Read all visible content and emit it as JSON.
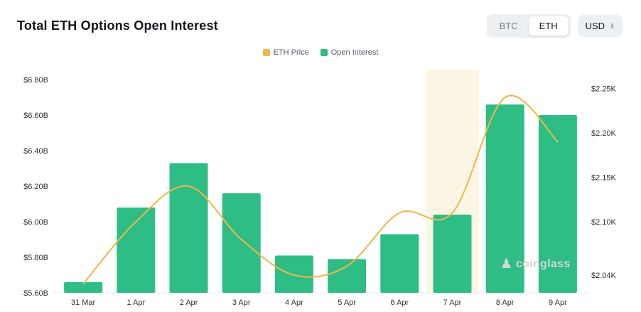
{
  "header": {
    "title": "Total ETH Options Open Interest",
    "toggle": {
      "options": [
        "BTC",
        "ETH"
      ],
      "active": "ETH"
    },
    "currency": {
      "label": "USD"
    }
  },
  "legend": [
    {
      "label": "ETH Price",
      "color": "#F0B64A"
    },
    {
      "label": "Open Interest",
      "color": "#2EBD85"
    }
  ],
  "watermark": {
    "label": "coinglass"
  },
  "colors": {
    "bar_green": "#2EBD85",
    "line_yellow": "#F0B64A",
    "highlight_band": "#FAF6E3",
    "axis_label": "#2e3338",
    "baseline": "#e9eaec"
  },
  "chart_data": {
    "type": "bar",
    "title": "Total ETH Options Open Interest",
    "categories": [
      "31 Mar",
      "1 Apr",
      "2 Apr",
      "3 Apr",
      "4 Apr",
      "5 Apr",
      "6 Apr",
      "7 Apr",
      "8 Apr",
      "9 Apr"
    ],
    "series": [
      {
        "name": "Open Interest",
        "type": "bar",
        "axis": "left",
        "unit": "USD billions",
        "color": "#2EBD85",
        "values": [
          5.66,
          6.08,
          6.33,
          6.16,
          5.81,
          5.79,
          5.93,
          6.04,
          6.66,
          6.6
        ]
      },
      {
        "name": "ETH Price",
        "type": "line",
        "axis": "right",
        "unit": "USD thousands",
        "color": "#F0B64A",
        "values": [
          2.03,
          2.1,
          2.14,
          2.08,
          2.04,
          2.05,
          2.11,
          2.11,
          2.24,
          2.19
        ]
      }
    ],
    "left_axis": {
      "ticks": [
        "$6.80B",
        "$6.60B",
        "$6.40B",
        "$6.20B",
        "$6.00B",
        "$5.80B",
        "$5.60B"
      ],
      "min": 5.6,
      "max": 6.8
    },
    "right_axis": {
      "ticks": [
        "$2.25K",
        "$2.20K",
        "$2.15K",
        "$2.10K",
        "$2.04K"
      ],
      "tick_values": [
        2.25,
        2.2,
        2.15,
        2.1,
        2.04
      ],
      "min": 2.02,
      "max": 2.26
    },
    "highlight_category": "7 Apr",
    "grid": false,
    "legend_position": "top-center"
  }
}
